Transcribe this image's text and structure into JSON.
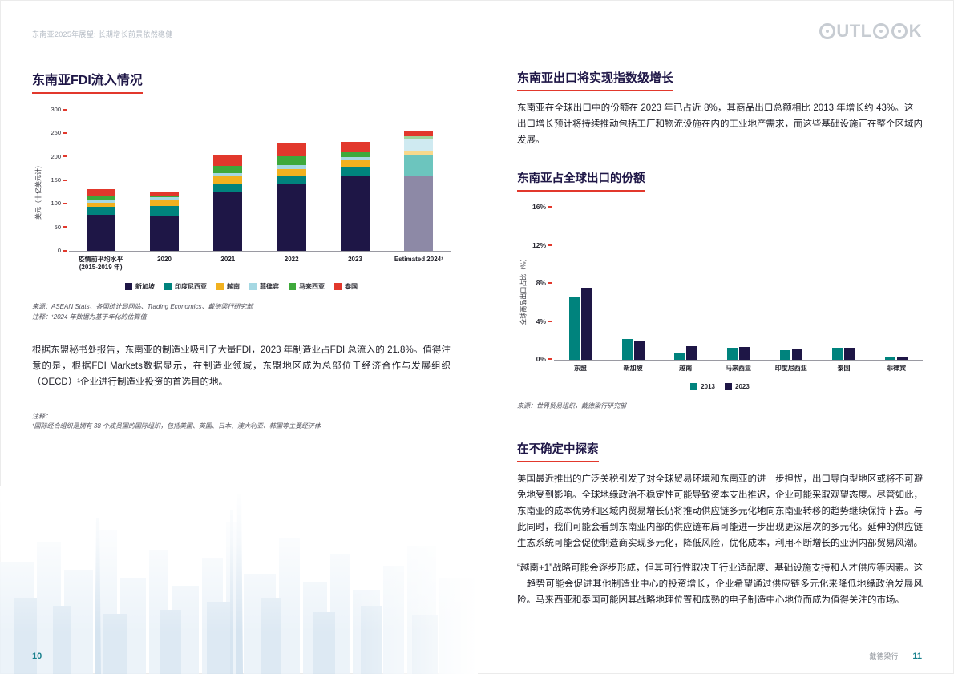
{
  "header": {
    "running_title": "东南亚2025年展望: 长期增长前景依然稳健",
    "logo_text": "OUTLOOK"
  },
  "footer": {
    "left_page_number": "10",
    "right_page_number": "11",
    "brand_name": "戴德梁行"
  },
  "left_page": {
    "section_title": "东南亚FDI流入情况",
    "source_line1": "来源：ASEAN Stats、各国统计局网站、Trading Economics、戴德梁行研究部",
    "source_line2": "注释：¹2024 年数据为基于年化的估算值",
    "body_paragraph": "根据东盟秘书处报告，东南亚的制造业吸引了大量FDI，2023 年制造业占FDI 总流入的 21.8%。值得注意的是，根据FDI Markets数据显示，在制造业领域，东盟地区成为总部位于经济合作与发展组织（OECD）¹企业进行制造业投资的首选目的地。",
    "footnote_label": "注释：",
    "footnote_text": "¹国际经合组织是拥有 38 个成员国的国际组织，包括美国、英国、日本、澳大利亚、韩国等主要经济体"
  },
  "right_page": {
    "title_exports": "东南亚出口将实现指数级增长",
    "para_exports": "东南亚在全球出口中的份额在 2023 年已占近 8%，其商品出口总额相比 2013 年增长约 43%。这一出口增长预计将持续推动包括工厂和物流设施在内的工业地产需求，而这些基础设施正在整个区域内发展。",
    "chart_title": "东南亚占全球出口的份额",
    "chart_source": "来源：世界贸易组织，戴德梁行研究部",
    "title_uncertainty": "在不确定中探索",
    "para_uncertainty_1": "美国最近推出的广泛关税引发了对全球贸易环境和东南亚的进一步担忧，出口导向型地区或将不可避免地受到影响。全球地缘政治不稳定性可能导致资本支出推迟，企业可能采取观望态度。尽管如此，东南亚的成本优势和区域内贸易增长仍将推动供应链多元化地向东南亚转移的趋势继续保持下去。与此同时，我们可能会看到东南亚内部的供应链布局可能进一步出现更深层次的多元化。延伸的供应链生态系统可能会促使制造商实现多元化，降低风险，优化成本，利用不断增长的亚洲内部贸易风潮。",
    "para_uncertainty_2": "“越南+1”战略可能会逐步形成，但其可行性取决于行业适配度、基础设施支持和人才供应等因素。这一趋势可能会促进其他制造业中心的投资增长，企业希望通过供应链多元化来降低地缘政治发展风险。马来西亚和泰国可能因其战略地理位置和成熟的电子制造中心地位而成为值得关注的市场。"
  },
  "chart_data": [
    {
      "type": "bar",
      "stacked": true,
      "title": "东南亚FDI流入情况",
      "ylabel": "美元（十亿美元计）",
      "ylim": [
        0,
        300
      ],
      "yticks": [
        "0",
        "50",
        "100",
        "150",
        "200",
        "250",
        "300"
      ],
      "categories": [
        "疫情前平均水平\n(2015-2019 年)",
        "2020",
        "2021",
        "2022",
        "2023",
        "Estimated 2024¹"
      ],
      "estimated_index": 5,
      "series": [
        {
          "name": "新加坡",
          "color": "#1e1646",
          "est_color": "#8d89a6",
          "values": [
            77,
            75,
            127,
            141,
            161,
            161
          ]
        },
        {
          "name": "印度尼西亚",
          "color": "#00837d",
          "est_color": "#6cc5be",
          "values": [
            17,
            20,
            17,
            19,
            17,
            44
          ]
        },
        {
          "name": "越南",
          "color": "#f1b11f",
          "est_color": "#f8d98c",
          "values": [
            8,
            14,
            14,
            14,
            14,
            7
          ]
        },
        {
          "name": "菲律宾",
          "color": "#a5d8e3",
          "est_color": "#cfeaf1",
          "values": [
            7,
            5,
            8,
            8,
            7,
            27
          ]
        },
        {
          "name": "马来西亚",
          "color": "#3ea93b",
          "est_color": "#9fd49a",
          "values": [
            8,
            3,
            14,
            19,
            10,
            5
          ]
        },
        {
          "name": "泰国",
          "color": "#e2382c",
          "est_color": "#e2382c",
          "values": [
            15,
            7,
            25,
            27,
            22,
            12
          ]
        }
      ],
      "legend_position": "bottom",
      "grid": false
    },
    {
      "type": "bar",
      "grouped": true,
      "title": "东南亚占全球出口的份额",
      "ylabel": "全球商品出口占比（%）",
      "ylim": [
        0,
        16
      ],
      "yticks": [
        "0%",
        "4%",
        "8%",
        "12%",
        "16%"
      ],
      "categories": [
        "东盟",
        "新加坡",
        "越南",
        "马来西亚",
        "印度尼西亚",
        "泰国",
        "菲律宾"
      ],
      "series": [
        {
          "name": "2013",
          "color": "#00837d",
          "values": [
            6.7,
            2.2,
            0.7,
            1.3,
            1.0,
            1.3,
            0.35
          ]
        },
        {
          "name": "2023",
          "color": "#1e1646",
          "values": [
            7.6,
            2.0,
            1.5,
            1.35,
            1.1,
            1.3,
            0.35
          ]
        }
      ],
      "legend_position": "bottom",
      "grid": false
    }
  ],
  "colors": {
    "brand_navy": "#1e1646",
    "brand_red": "#e2382c",
    "teal": "#00837d",
    "page_number_teal": "#177f8c",
    "running_title_gray": "#b4bbc4"
  }
}
